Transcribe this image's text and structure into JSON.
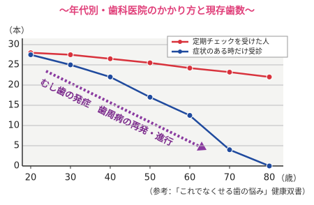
{
  "chart_data": {
    "type": "line",
    "title": "〜年代別・歯科医院のかかり方と現存歯数〜",
    "y_label": "（本）",
    "x_label": "（歳）",
    "source": "（参考：「これでなくせる歯の悩み」健康双書）",
    "annotation": "むし歯の発症　歯周病の再発・進行",
    "x": [
      20,
      30,
      40,
      50,
      60,
      70,
      80
    ],
    "xlim": [
      20,
      80
    ],
    "xticks": [
      20,
      30,
      40,
      50,
      60,
      70,
      80
    ],
    "ylim": [
      0,
      30
    ],
    "yticks": [
      0,
      5,
      10,
      15,
      20,
      25,
      30
    ],
    "grid": true,
    "legend": "upper right",
    "series": [
      {
        "name": "定期チェックを受けた人",
        "color": "#d8323c",
        "values": [
          28,
          27.5,
          26.5,
          25.5,
          24.2,
          23.2,
          22
        ]
      },
      {
        "name": "症状のある時だけ受診",
        "color": "#1f4a9e",
        "values": [
          27.5,
          25,
          22,
          17,
          12.5,
          4,
          0
        ]
      }
    ]
  }
}
